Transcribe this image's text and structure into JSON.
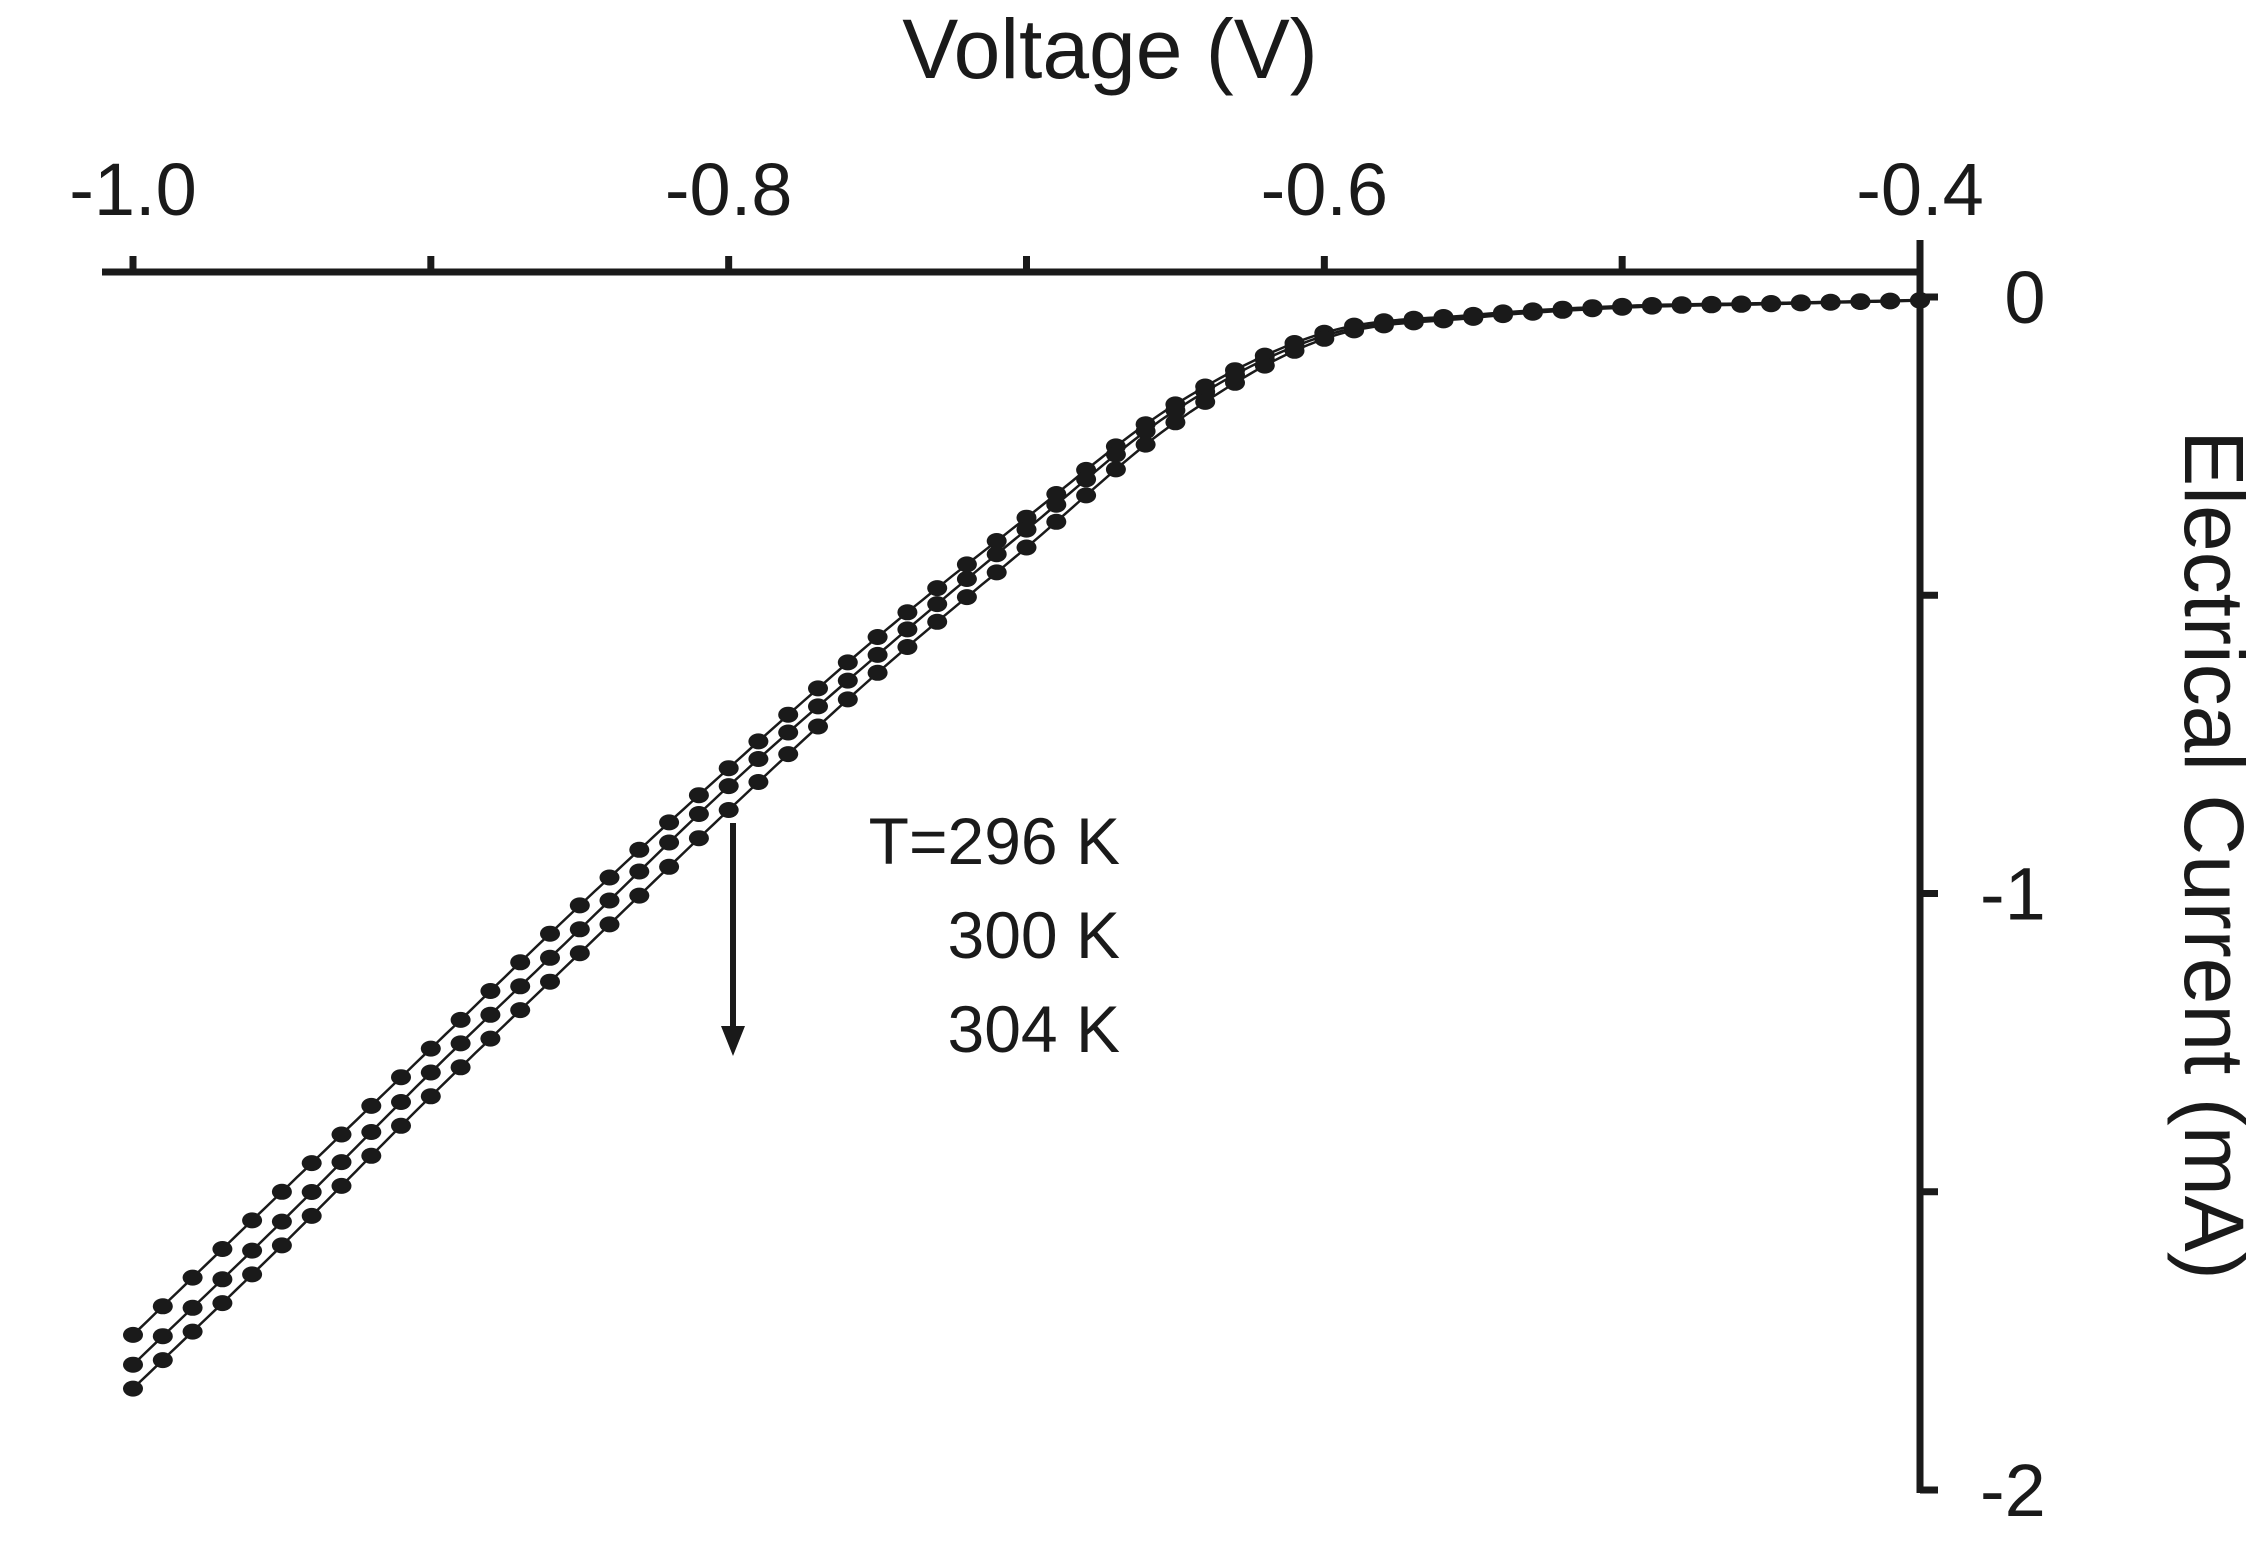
{
  "chart_data": {
    "type": "scatter",
    "xlabel": "Voltage (V)",
    "ylabel": "Electrical Current (mA)",
    "xlim": [
      -1.0,
      -0.4
    ],
    "ylim": [
      -2,
      0
    ],
    "x_axis_position": "top",
    "y_axis_position": "right",
    "x_ticks": [
      -1.0,
      -0.9,
      -0.8,
      -0.7,
      -0.6,
      -0.5,
      -0.4
    ],
    "x_tick_labels": [
      "-1.0",
      "",
      "-0.8",
      "",
      "-0.6",
      "",
      "-0.4"
    ],
    "y_ticks": [
      0,
      -0.5,
      -1,
      -1.5,
      -2
    ],
    "y_tick_labels": [
      "0",
      "",
      "-1",
      "",
      "-2"
    ],
    "grid": false,
    "marker": "filled-circle",
    "color": "#1a1a1a",
    "annotation": {
      "arrow": "down",
      "lines": [
        "T=296 K",
        "300 K",
        "304 K"
      ]
    },
    "series": [
      {
        "x": [
          -1.0,
          -0.95,
          -0.9,
          -0.85,
          -0.8,
          -0.75,
          -0.7,
          -0.65,
          -0.6,
          -0.55,
          -0.5,
          -0.45,
          -0.4
        ],
        "y": [
          -1.74,
          -1.5,
          -1.26,
          -1.02,
          -0.79,
          -0.57,
          -0.37,
          -0.18,
          -0.06,
          -0.03,
          -0.015,
          -0.01,
          -0.005
        ]
      },
      {
        "x": [
          -1.0,
          -0.95,
          -0.9,
          -0.85,
          -0.8,
          -0.75,
          -0.7,
          -0.65,
          -0.6,
          -0.55,
          -0.5,
          -0.45,
          -0.4
        ],
        "y": [
          -1.79,
          -1.55,
          -1.3,
          -1.06,
          -0.82,
          -0.6,
          -0.39,
          -0.19,
          -0.065,
          -0.032,
          -0.017,
          -0.011,
          -0.006
        ]
      },
      {
        "x": [
          -1.0,
          -0.95,
          -0.9,
          -0.85,
          -0.8,
          -0.75,
          -0.7,
          -0.65,
          -0.6,
          -0.55,
          -0.5,
          -0.45,
          -0.4
        ],
        "y": [
          -1.83,
          -1.59,
          -1.34,
          -1.1,
          -0.86,
          -0.63,
          -0.42,
          -0.21,
          -0.07,
          -0.035,
          -0.018,
          -0.012,
          -0.006
        ]
      }
    ]
  }
}
